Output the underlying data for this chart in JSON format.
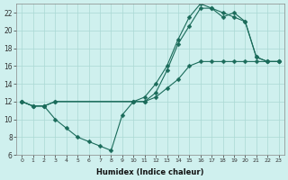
{
  "xlabel": "Humidex (Indice chaleur)",
  "xlim": [
    -0.5,
    23.5
  ],
  "ylim": [
    6,
    23
  ],
  "yticks": [
    6,
    8,
    10,
    12,
    14,
    16,
    18,
    20,
    22
  ],
  "xticks": [
    0,
    1,
    2,
    3,
    4,
    5,
    6,
    7,
    8,
    9,
    10,
    11,
    12,
    13,
    14,
    15,
    16,
    17,
    18,
    19,
    20,
    21,
    22,
    23
  ],
  "bg_color": "#cff0ee",
  "grid_color": "#aad8d4",
  "line_color": "#1a6b5a",
  "line1_x": [
    0,
    1,
    2,
    3,
    10,
    11,
    12,
    13,
    14,
    15,
    16,
    17,
    18,
    19,
    20,
    21,
    22,
    23
  ],
  "line1_y": [
    12,
    11.5,
    11.5,
    12,
    12,
    12,
    13,
    15.5,
    18.5,
    20.5,
    22.5,
    22.5,
    21.5,
    22,
    21,
    17,
    16.5,
    16.5
  ],
  "line2_x": [
    0,
    1,
    2,
    3,
    10,
    11,
    12,
    13,
    14,
    15,
    16,
    17,
    18,
    19,
    20,
    21,
    22,
    23
  ],
  "line2_y": [
    12,
    11.5,
    11.5,
    12,
    12,
    12.5,
    14,
    16,
    19,
    21.5,
    23,
    22.5,
    22,
    21.5,
    21,
    17,
    16.5,
    16.5
  ],
  "line3_x": [
    0,
    1,
    2,
    3,
    4,
    5,
    6,
    7,
    8,
    9,
    10,
    11,
    12,
    13,
    14,
    15,
    16,
    17,
    18,
    19,
    20,
    21,
    22,
    23
  ],
  "line3_y": [
    12,
    11.5,
    11.5,
    10,
    9,
    8,
    7.5,
    7,
    6.5,
    10.5,
    12,
    12,
    12.5,
    13.5,
    14.5,
    16,
    16.5,
    16.5,
    16.5,
    16.5,
    16.5,
    16.5,
    16.5,
    16.5
  ]
}
